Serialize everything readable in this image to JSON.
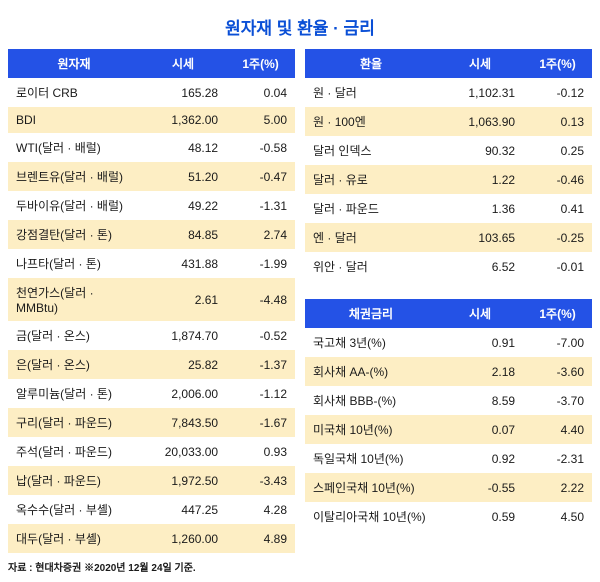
{
  "title": "원자재 및 환율 · 금리",
  "title_color": "#0a4fd6",
  "title_fontsize": 17,
  "header_bg": "#2452e6",
  "header_color": "#ffffff",
  "row_even_bg": "#ffffff",
  "row_odd_bg": "#fdeec4",
  "row_fontsize": 12,
  "text_color": "#1a1a1a",
  "footnote": "자료 : 현대차증권 ※2020년 12월 24일 기준.",
  "footnote_fontsize": 10,
  "commodities": {
    "headers": [
      "원자재",
      "시세",
      "1주(%)"
    ],
    "rows": [
      [
        "로이터 CRB",
        "165.28",
        "0.04"
      ],
      [
        "BDI",
        "1,362.00",
        "5.00"
      ],
      [
        "WTI(달러 · 배럴)",
        "48.12",
        "-0.58"
      ],
      [
        "브렌트유(달러 · 배럴)",
        "51.20",
        "-0.47"
      ],
      [
        "두바이유(달러 · 배럴)",
        "49.22",
        "-1.31"
      ],
      [
        "강점결탄(달러 · 톤)",
        "84.85",
        "2.74"
      ],
      [
        "나프타(달러 · 톤)",
        "431.88",
        "-1.99"
      ],
      [
        "천연가스(달러 · MMBtu)",
        "2.61",
        "-4.48"
      ],
      [
        "금(달러 · 온스)",
        "1,874.70",
        "-0.52"
      ],
      [
        "은(달러 · 온스)",
        "25.82",
        "-1.37"
      ],
      [
        "알루미늄(달러 · 톤)",
        "2,006.00",
        "-1.12"
      ],
      [
        "구리(달러 · 파운드)",
        "7,843.50",
        "-1.67"
      ],
      [
        "주석(달러 · 파운드)",
        "20,033.00",
        "0.93"
      ],
      [
        "납(달러 · 파운드)",
        "1,972.50",
        "-3.43"
      ],
      [
        "옥수수(달러 · 부셸)",
        "447.25",
        "4.28"
      ],
      [
        "대두(달러 · 부셸)",
        "1,260.00",
        "4.89"
      ]
    ]
  },
  "fx": {
    "headers": [
      "환율",
      "시세",
      "1주(%)"
    ],
    "rows": [
      [
        "원 · 달러",
        "1,102.31",
        "-0.12"
      ],
      [
        "원 · 100엔",
        "1,063.90",
        "0.13"
      ],
      [
        "달러 인덱스",
        "90.32",
        "0.25"
      ],
      [
        "달러 · 유로",
        "1.22",
        "-0.46"
      ],
      [
        "달러 · 파운드",
        "1.36",
        "0.41"
      ],
      [
        "엔 · 달러",
        "103.65",
        "-0.25"
      ],
      [
        "위안 · 달러",
        "6.52",
        "-0.01"
      ]
    ]
  },
  "bonds": {
    "headers": [
      "채권금리",
      "시세",
      "1주(%)"
    ],
    "rows": [
      [
        "국고채 3년(%)",
        "0.91",
        "-7.00"
      ],
      [
        "회사채 AA-(%)",
        "2.18",
        "-3.60"
      ],
      [
        "회사채 BBB-(%)",
        "8.59",
        "-3.70"
      ],
      [
        "미국채 10년(%)",
        "0.07",
        "4.40"
      ],
      [
        "독일국채 10년(%)",
        "0.92",
        "-2.31"
      ],
      [
        "스페인국채 10년(%)",
        "-0.55",
        "2.22"
      ],
      [
        "이탈리아국채 10년(%)",
        "0.59",
        "4.50"
      ]
    ]
  }
}
